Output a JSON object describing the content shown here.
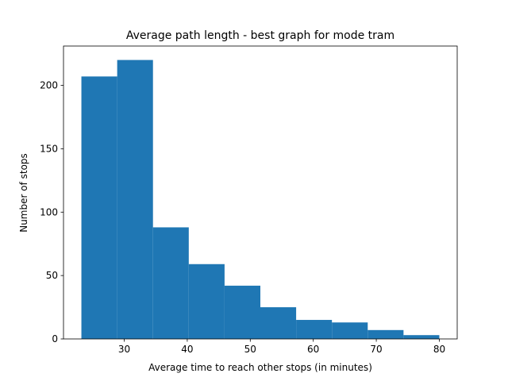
{
  "chart_data": {
    "type": "bar",
    "title": "Average path length - best graph for mode tram",
    "xlabel": "Average time to reach other stops (in minutes)",
    "ylabel": "Number of stops",
    "bin_edges": [
      23.2,
      28.88,
      34.56,
      40.24,
      45.92,
      51.6,
      57.28,
      62.96,
      68.64,
      74.32,
      80.0
    ],
    "values": [
      207,
      220,
      88,
      59,
      42,
      25,
      15,
      13,
      7,
      3
    ],
    "xlim": [
      20.36,
      82.84
    ],
    "ylim": [
      0,
      231
    ],
    "xticks": [
      30,
      40,
      50,
      60,
      70,
      80
    ],
    "yticks": [
      0,
      50,
      100,
      150,
      200
    ],
    "grid": false,
    "color": "#1f77b4"
  }
}
